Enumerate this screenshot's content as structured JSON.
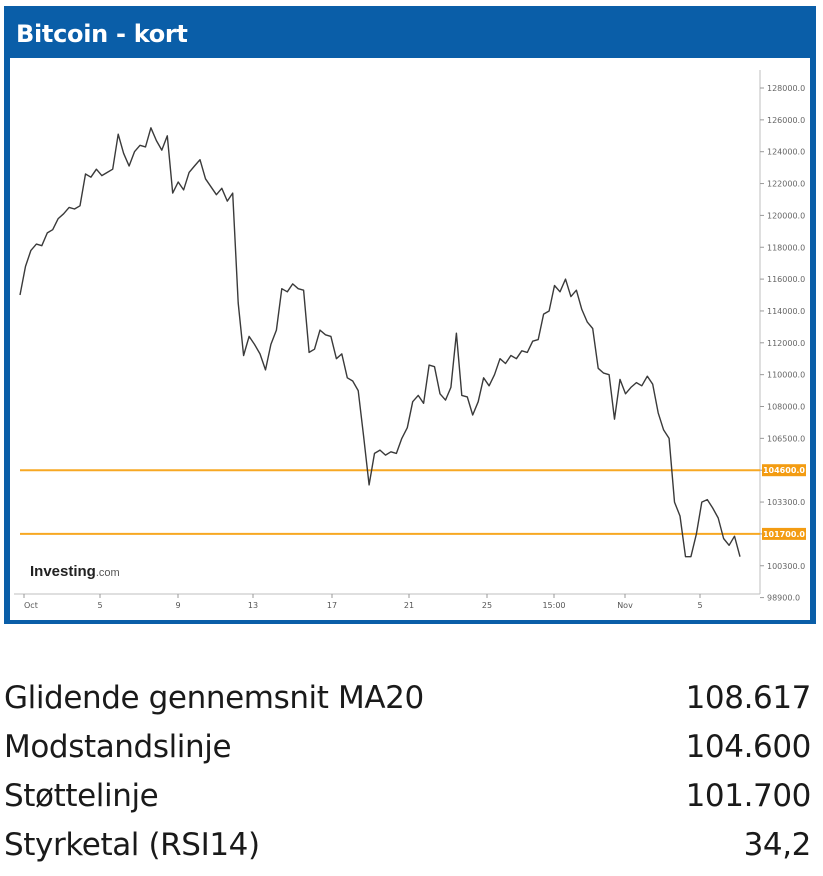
{
  "header": {
    "title": "Bitcoin - kort"
  },
  "colors": {
    "header_bg": "#0a5ea8",
    "price_line": "#3a3a3a",
    "level_line": "#f7a823",
    "level_tag": "#f39c12"
  },
  "chart_data": {
    "type": "line",
    "title": "Bitcoin - kort",
    "watermark": "Investing.com",
    "watermark_main": "Investing",
    "watermark_suffix": ".com",
    "x_ticks": [
      "Oct",
      "5",
      "9",
      "13",
      "17",
      "21",
      "25",
      "15:00",
      "Nov",
      "5"
    ],
    "y_ticks": [
      "128000.0",
      "126000.0",
      "124000.0",
      "122000.0",
      "120000.0",
      "118000.0",
      "116000.0",
      "114000.0",
      "112000.0",
      "110000.0",
      "108000.0",
      "106500.0",
      "104600.0",
      "103300.0",
      "101700.0",
      "100300.0",
      "98900.0"
    ],
    "y_axis_side": "right",
    "grid": false,
    "horizontal_levels": [
      {
        "value": 104600,
        "tag": "104600.0"
      },
      {
        "value": 101700,
        "tag": "101700.0"
      }
    ],
    "series": [
      {
        "values": [
          [
            0.0,
            115000
          ],
          [
            0.4,
            116800
          ],
          [
            0.8,
            117800
          ],
          [
            1.2,
            118200
          ],
          [
            1.6,
            118100
          ],
          [
            2.0,
            118900
          ],
          [
            2.4,
            119100
          ],
          [
            2.8,
            119800
          ],
          [
            3.2,
            120100
          ],
          [
            3.6,
            120500
          ],
          [
            4.0,
            120400
          ],
          [
            4.4,
            120600
          ],
          [
            4.8,
            122600
          ],
          [
            5.2,
            122400
          ],
          [
            5.6,
            122900
          ],
          [
            6.0,
            122500
          ],
          [
            6.4,
            122700
          ],
          [
            6.8,
            122900
          ],
          [
            7.2,
            125100
          ],
          [
            7.6,
            123900
          ],
          [
            8.0,
            123100
          ],
          [
            8.4,
            124000
          ],
          [
            8.8,
            124400
          ],
          [
            9.2,
            124300
          ],
          [
            9.6,
            125500
          ],
          [
            10.0,
            124700
          ],
          [
            10.4,
            124100
          ],
          [
            10.8,
            125000
          ],
          [
            11.2,
            121400
          ],
          [
            11.6,
            122100
          ],
          [
            12.0,
            121600
          ],
          [
            12.4,
            122700
          ],
          [
            12.8,
            123100
          ],
          [
            13.2,
            123500
          ],
          [
            13.6,
            122300
          ],
          [
            14.0,
            121800
          ],
          [
            14.4,
            121300
          ],
          [
            14.8,
            121700
          ],
          [
            15.2,
            120900
          ],
          [
            15.6,
            121400
          ],
          [
            16.0,
            114500
          ],
          [
            16.4,
            111200
          ],
          [
            16.8,
            112400
          ],
          [
            17.2,
            111900
          ],
          [
            17.6,
            111300
          ],
          [
            18.0,
            110300
          ],
          [
            18.4,
            111900
          ],
          [
            18.8,
            112800
          ],
          [
            19.2,
            115400
          ],
          [
            19.6,
            115200
          ],
          [
            20.0,
            115700
          ],
          [
            20.4,
            115400
          ],
          [
            20.8,
            115300
          ],
          [
            21.2,
            111400
          ],
          [
            21.6,
            111600
          ],
          [
            22.0,
            112800
          ],
          [
            22.4,
            112500
          ],
          [
            22.8,
            112400
          ],
          [
            23.2,
            111000
          ],
          [
            23.6,
            111300
          ],
          [
            24.0,
            109800
          ],
          [
            24.4,
            109600
          ],
          [
            24.8,
            109000
          ],
          [
            25.2,
            106600
          ],
          [
            25.6,
            104000
          ],
          [
            26.0,
            105600
          ],
          [
            26.4,
            105800
          ],
          [
            26.8,
            105500
          ],
          [
            27.2,
            105700
          ],
          [
            27.6,
            105600
          ],
          [
            28.0,
            106500
          ],
          [
            28.4,
            107000
          ],
          [
            28.8,
            108300
          ],
          [
            29.2,
            108700
          ],
          [
            29.6,
            108200
          ],
          [
            30.0,
            110600
          ],
          [
            30.4,
            110500
          ],
          [
            30.8,
            108800
          ],
          [
            31.2,
            108400
          ],
          [
            31.6,
            109200
          ],
          [
            32.0,
            112600
          ],
          [
            32.4,
            108700
          ],
          [
            32.8,
            108600
          ],
          [
            33.2,
            107600
          ],
          [
            33.6,
            108300
          ],
          [
            34.0,
            109800
          ],
          [
            34.4,
            109300
          ],
          [
            34.8,
            110000
          ],
          [
            35.2,
            111000
          ],
          [
            35.6,
            110700
          ],
          [
            36.0,
            111200
          ],
          [
            36.4,
            111000
          ],
          [
            36.8,
            111500
          ],
          [
            37.2,
            111400
          ],
          [
            37.6,
            112100
          ],
          [
            38.0,
            112200
          ],
          [
            38.4,
            113800
          ],
          [
            38.8,
            114000
          ],
          [
            39.2,
            115600
          ],
          [
            39.6,
            115200
          ],
          [
            40.0,
            116000
          ],
          [
            40.4,
            114900
          ],
          [
            40.8,
            115300
          ],
          [
            41.2,
            114100
          ],
          [
            41.6,
            113300
          ],
          [
            42.0,
            112900
          ],
          [
            42.4,
            110400
          ],
          [
            42.8,
            110100
          ],
          [
            43.2,
            110000
          ],
          [
            43.6,
            107400
          ],
          [
            44.0,
            109700
          ],
          [
            44.4,
            108800
          ],
          [
            44.8,
            109200
          ],
          [
            45.2,
            109500
          ],
          [
            45.6,
            109300
          ],
          [
            46.0,
            109900
          ],
          [
            46.4,
            109400
          ],
          [
            46.8,
            107700
          ],
          [
            47.2,
            106900
          ],
          [
            47.6,
            106500
          ],
          [
            48.0,
            103300
          ],
          [
            48.4,
            102600
          ],
          [
            48.8,
            100700
          ],
          [
            49.2,
            100700
          ],
          [
            49.6,
            101700
          ],
          [
            50.0,
            103300
          ],
          [
            50.4,
            103400
          ],
          [
            50.8,
            103000
          ],
          [
            51.2,
            102500
          ],
          [
            51.6,
            101500
          ],
          [
            52.0,
            101200
          ],
          [
            52.4,
            101600
          ],
          [
            52.8,
            100700
          ]
        ]
      }
    ]
  },
  "stats": [
    {
      "label": "Glidende gennemsnit MA20",
      "value": "108.617"
    },
    {
      "label": "Modstandslinje",
      "value": "104.600"
    },
    {
      "label": "Støttelinje",
      "value": "101.700"
    },
    {
      "label": "Styrketal (RSI14)",
      "value": "34,2"
    }
  ]
}
